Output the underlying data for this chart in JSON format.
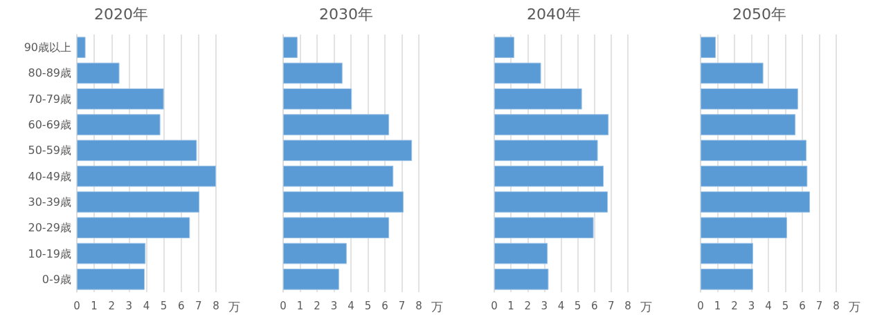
{
  "chart_data": [
    {
      "type": "bar",
      "orientation": "horizontal",
      "title": "2020年",
      "xlabel": "万",
      "categories": [
        "90歳以上",
        "80-89歳",
        "70-79歳",
        "60-69歳",
        "50-59歳",
        "40-49歳",
        "30-39歳",
        "20-29歳",
        "10-19歳",
        "0-9歳"
      ],
      "series": [
        {
          "color": "#5b9bd5",
          "values": [
            0.5,
            2.45,
            5.0,
            4.8,
            6.9,
            8.0,
            7.05,
            6.5,
            3.95,
            3.9
          ]
        }
      ],
      "xlim": [
        0,
        8
      ],
      "xticks": [
        0,
        1,
        2,
        3,
        4,
        5,
        6,
        7,
        8
      ],
      "grid": "x"
    },
    {
      "type": "bar",
      "orientation": "horizontal",
      "title": "2030年",
      "xlabel": "万",
      "categories": [
        null,
        null,
        null,
        null,
        null,
        null,
        null,
        null,
        null,
        null
      ],
      "series": [
        {
          "color": "#5b9bd5",
          "values": [
            0.85,
            3.5,
            4.05,
            6.25,
            7.6,
            6.5,
            7.1,
            6.25,
            3.75,
            3.3
          ]
        }
      ],
      "xlim": [
        0,
        8
      ],
      "xticks": [
        0,
        1,
        2,
        3,
        4,
        5,
        6,
        7,
        8
      ],
      "grid": "x"
    },
    {
      "type": "bar",
      "orientation": "horizontal",
      "title": "2040年",
      "xlabel": "万",
      "categories": [
        null,
        null,
        null,
        null,
        null,
        null,
        null,
        null,
        null,
        null
      ],
      "series": [
        {
          "color": "#5b9bd5",
          "values": [
            1.2,
            2.8,
            5.25,
            6.85,
            6.2,
            6.55,
            6.8,
            5.95,
            3.2,
            3.25
          ]
        }
      ],
      "xlim": [
        0,
        8
      ],
      "xticks": [
        0,
        1,
        2,
        3,
        4,
        5,
        6,
        7,
        8
      ],
      "grid": "x"
    },
    {
      "type": "bar",
      "orientation": "horizontal",
      "title": "2050年",
      "xlabel": "万",
      "categories": [
        null,
        null,
        null,
        null,
        null,
        null,
        null,
        null,
        null,
        null
      ],
      "series": [
        {
          "color": "#5b9bd5",
          "values": [
            0.9,
            3.7,
            5.75,
            5.6,
            6.25,
            6.3,
            6.45,
            5.1,
            3.1,
            3.1
          ]
        }
      ],
      "xlim": [
        0,
        8
      ],
      "xticks": [
        0,
        1,
        2,
        3,
        4,
        5,
        6,
        7,
        8
      ],
      "grid": "x"
    }
  ]
}
